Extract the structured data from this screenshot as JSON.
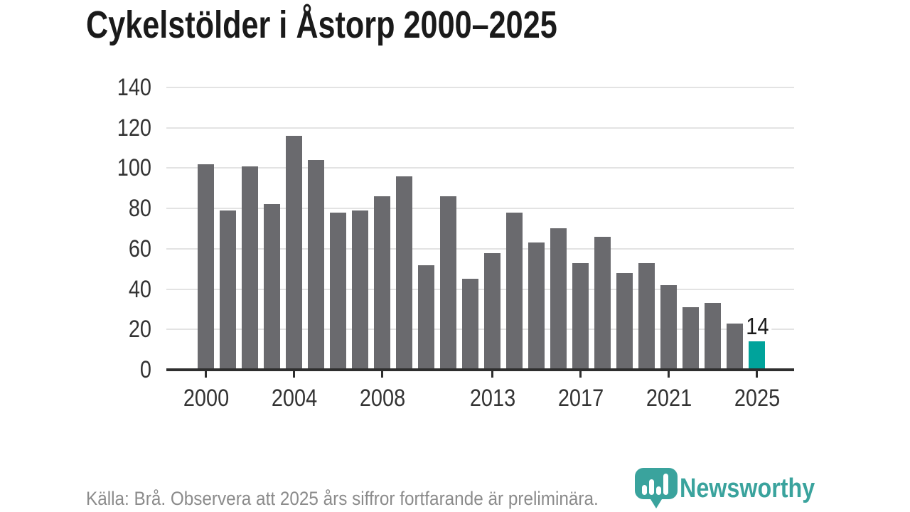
{
  "title": "Cykelstölder i Åstorp 2000–2025",
  "footer": {
    "source_note": "Källa: Brå. Observera att 2025 års siffror fortfarande är preliminära.",
    "brand_name": "Newsworthy"
  },
  "colors": {
    "bar": "#6a6a6e",
    "highlight": "#00a39b",
    "brand_teal": "#3aa39d",
    "gridline": "#e3e3e3",
    "axis": "#2e2e2e",
    "title_text": "#1a1a1a",
    "tick_text": "#333333",
    "footer_text": "#8b8b8b",
    "value_label_text": "#1a1a1a"
  },
  "chart_data": {
    "type": "bar",
    "title": "Cykelstölder i Åstorp 2000–2025",
    "xlabel": "",
    "ylabel": "",
    "x": [
      2000,
      2001,
      2002,
      2003,
      2004,
      2005,
      2006,
      2007,
      2008,
      2009,
      2010,
      2011,
      2012,
      2013,
      2014,
      2015,
      2016,
      2017,
      2018,
      2019,
      2020,
      2021,
      2022,
      2023,
      2024,
      2025
    ],
    "values": [
      102,
      79,
      101,
      82,
      116,
      104,
      78,
      79,
      86,
      96,
      52,
      86,
      45,
      58,
      78,
      63,
      70,
      53,
      66,
      48,
      53,
      42,
      31,
      33,
      23,
      14
    ],
    "highlight_index": 25,
    "value_label": {
      "index": 25,
      "text": "14"
    },
    "xticks": [
      2000,
      2004,
      2008,
      2013,
      2017,
      2021,
      2025
    ],
    "yticks": [
      0,
      20,
      40,
      60,
      80,
      100,
      120,
      140
    ],
    "ylim": [
      0,
      140
    ],
    "grid": "horizontal",
    "legend": "none",
    "note": "2025 bar highlighted in teal; all other bars gray"
  }
}
